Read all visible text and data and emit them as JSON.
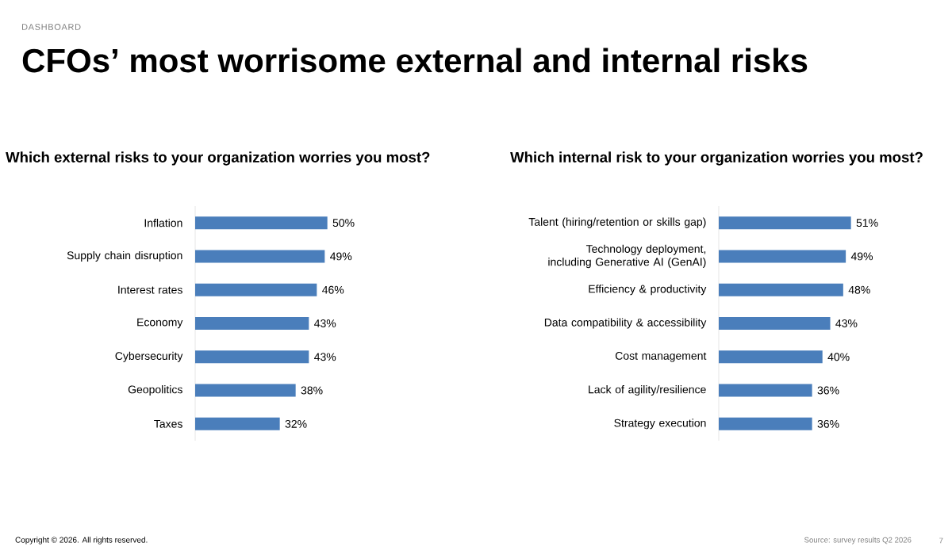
{
  "chart_data": [
    {
      "type": "other",
      "title": "CFOs’ most worrisome external and internal risks",
      "annotations": [
        "DASHBOARD",
        "Copyright © 2026. All rights reserved.",
        "Source: survey results Q2 2026",
        "7"
      ]
    },
    {
      "type": "bar",
      "orientation": "horizontal",
      "title": "Which external risks to your organization worries you most?",
      "categories": [
        "Inflation",
        "Supply chain disruption",
        "Interest rates",
        "Economy",
        "Cybersecurity",
        "Geopolitics",
        "Taxes"
      ],
      "values": [
        50,
        49,
        46,
        43,
        43,
        38,
        32
      ],
      "value_labels": [
        "50%",
        "49%",
        "46%",
        "43%",
        "43%",
        "38%",
        "32%"
      ],
      "color": "#4a7ebb"
    },
    {
      "type": "bar",
      "orientation": "horizontal",
      "title": "Which internal risk to your organization worries you most?",
      "categories": [
        "Talent (hiring/retention or skills gap)",
        "Technology deployment, including Generative AI (GenAI)",
        "Efficiency & productivity",
        "Data compatibility & accessibility",
        "Cost management",
        "Lack of agility/resilience",
        "Strategy execution"
      ],
      "values": [
        51,
        49,
        48,
        43,
        40,
        36,
        36
      ],
      "value_labels": [
        "51%",
        "49%",
        "48%",
        "43%",
        "40%",
        "36%",
        "36%"
      ],
      "color": "#4a7ebb"
    }
  ]
}
